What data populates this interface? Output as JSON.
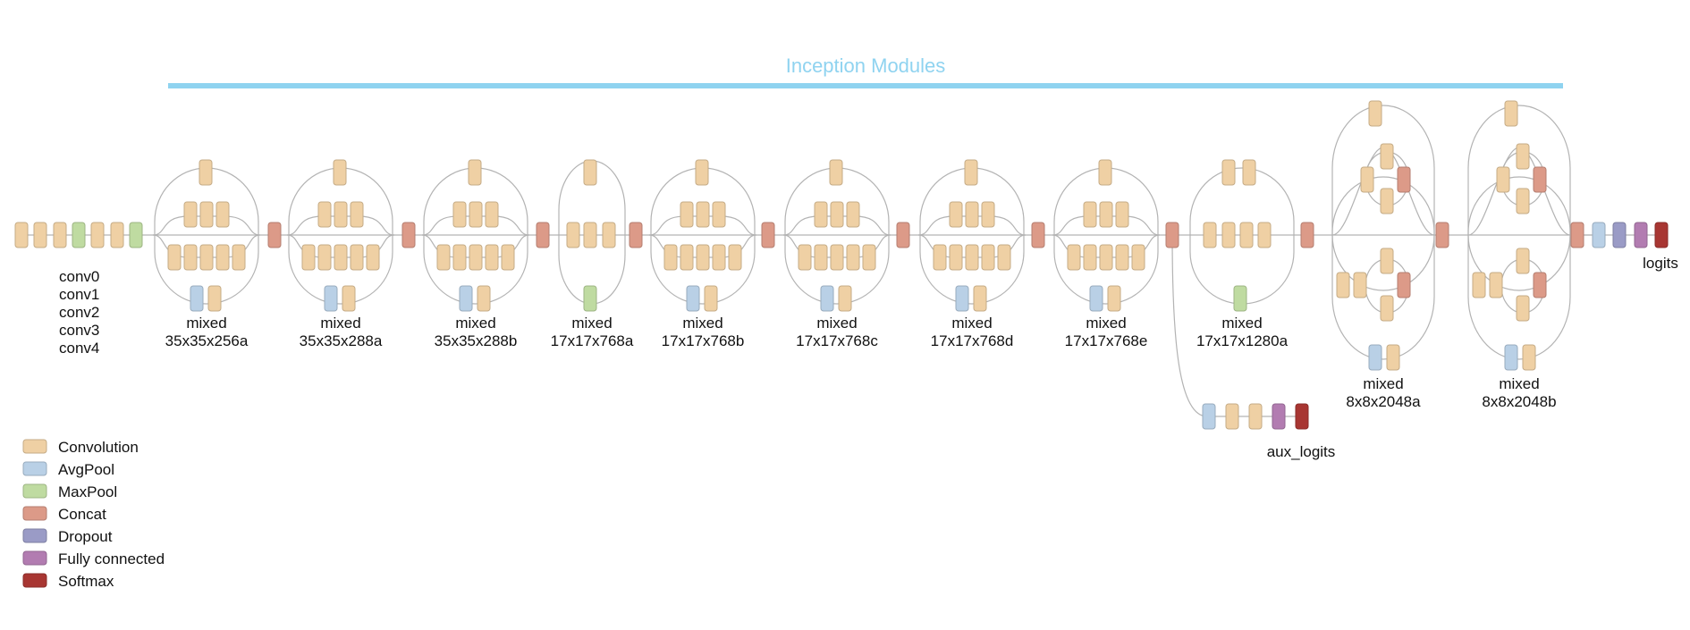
{
  "title": {
    "text": "Inception Modules",
    "color": "#8fd3f0"
  },
  "colors": {
    "Convolution": "#efd0a4",
    "AvgPool": "#b9d0e6",
    "MaxPool": "#bfdba1",
    "Concat": "#dc9a88",
    "Dropout": "#9a9bc6",
    "Fully connected": "#b27cb1",
    "Softmax": "#a83632"
  },
  "stem_labels": [
    "conv0",
    "conv1",
    "conv2",
    "conv3",
    "conv4"
  ],
  "modules": [
    {
      "name": "mixed",
      "shape": "35x35x256a"
    },
    {
      "name": "mixed",
      "shape": "35x35x288a"
    },
    {
      "name": "mixed",
      "shape": "35x35x288b"
    },
    {
      "name": "mixed",
      "shape": "17x17x768a"
    },
    {
      "name": "mixed",
      "shape": "17x17x768b"
    },
    {
      "name": "mixed",
      "shape": "17x17x768c"
    },
    {
      "name": "mixed",
      "shape": "17x17x768d"
    },
    {
      "name": "mixed",
      "shape": "17x17x768e"
    },
    {
      "name": "mixed",
      "shape": "17x17x1280a"
    },
    {
      "name": "mixed",
      "shape": "8x8x2048a"
    },
    {
      "name": "mixed",
      "shape": "8x8x2048b"
    }
  ],
  "aux_label": "aux_logits",
  "logits_label": "logits",
  "legend": [
    {
      "label": "Convolution",
      "type": "Convolution"
    },
    {
      "label": "AvgPool",
      "type": "AvgPool"
    },
    {
      "label": "MaxPool",
      "type": "MaxPool"
    },
    {
      "label": "Concat",
      "type": "Concat"
    },
    {
      "label": "Dropout",
      "type": "Dropout"
    },
    {
      "label": "Fully connected",
      "type": "Fully connected"
    },
    {
      "label": "Softmax",
      "type": "Softmax"
    }
  ]
}
